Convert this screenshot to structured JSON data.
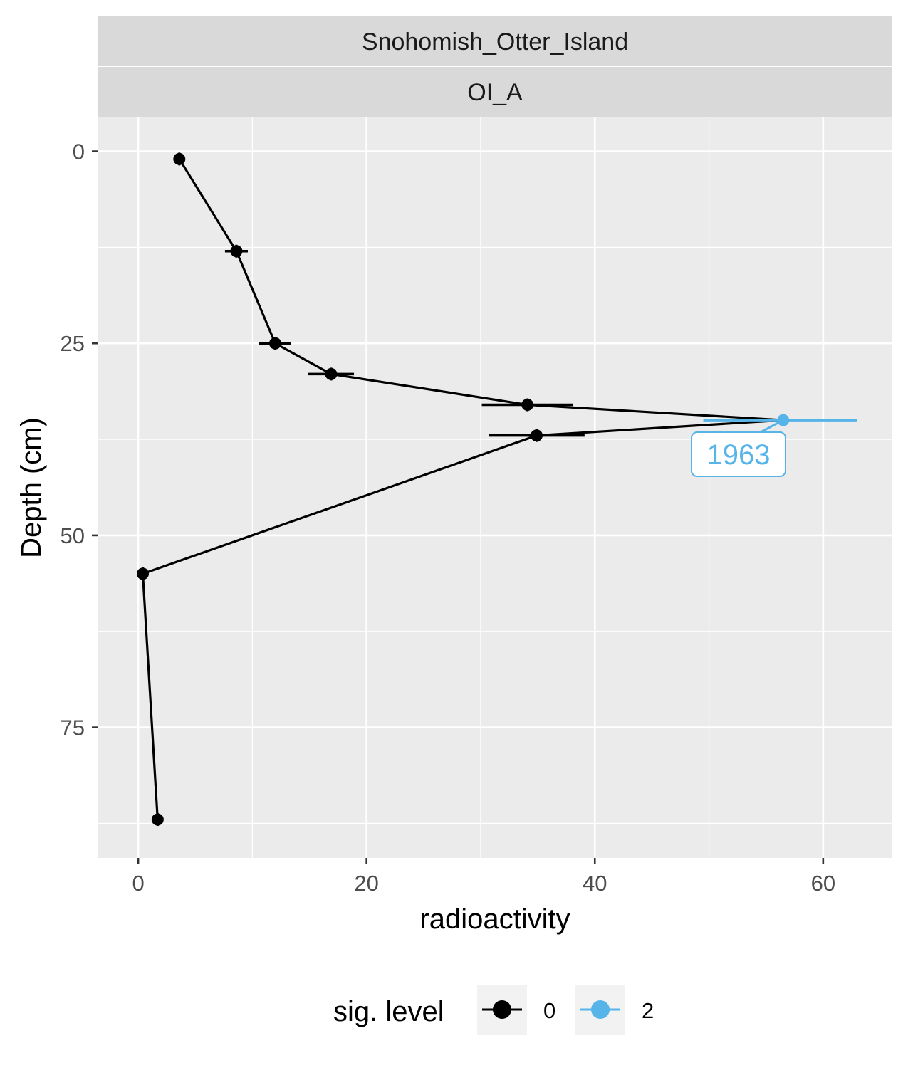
{
  "chart_data": {
    "type": "line",
    "facet_strips": [
      "Snohomish_Otter_Island",
      "OI_A"
    ],
    "xlabel": "radioactivity",
    "ylabel": "Depth (cm)",
    "xlim": [
      -3.5,
      66
    ],
    "ylim": [
      92,
      -4.5
    ],
    "y_reversed": true,
    "x_ticks": [
      0,
      20,
      40,
      60
    ],
    "y_ticks": [
      0,
      25,
      50,
      75
    ],
    "grid": true,
    "legend": {
      "title": "sig. level",
      "position": "bottom",
      "entries": [
        {
          "label": "0",
          "color": "#000000"
        },
        {
          "label": "2",
          "color": "#56B4E9"
        }
      ]
    },
    "series": [
      {
        "name": "0",
        "color": "#000000",
        "points": [
          {
            "x": 3.6,
            "y": 1,
            "xerr": 0.5
          },
          {
            "x": 8.6,
            "y": 13,
            "xerr": 1.0
          },
          {
            "x": 12.0,
            "y": 25,
            "xerr": 1.4
          },
          {
            "x": 16.9,
            "y": 29,
            "xerr": 2.0
          },
          {
            "x": 34.1,
            "y": 33,
            "xerr": 4.0
          },
          {
            "x": 56.5,
            "y": 35,
            "xerr": 0
          },
          {
            "x": 34.9,
            "y": 37,
            "xerr": 4.2
          },
          {
            "x": 0.4,
            "y": 55,
            "xerr": 0.3
          },
          {
            "x": 1.7,
            "y": 87,
            "xerr": 0.4
          }
        ]
      },
      {
        "name": "2",
        "color": "#56B4E9",
        "points": [
          {
            "x": 56.5,
            "y": 35,
            "xerr_low": 7.0,
            "xerr_high": 6.5
          }
        ]
      }
    ],
    "annotations": [
      {
        "text": "1963",
        "x": 56.5,
        "y": 35,
        "color": "#56B4E9"
      }
    ]
  }
}
